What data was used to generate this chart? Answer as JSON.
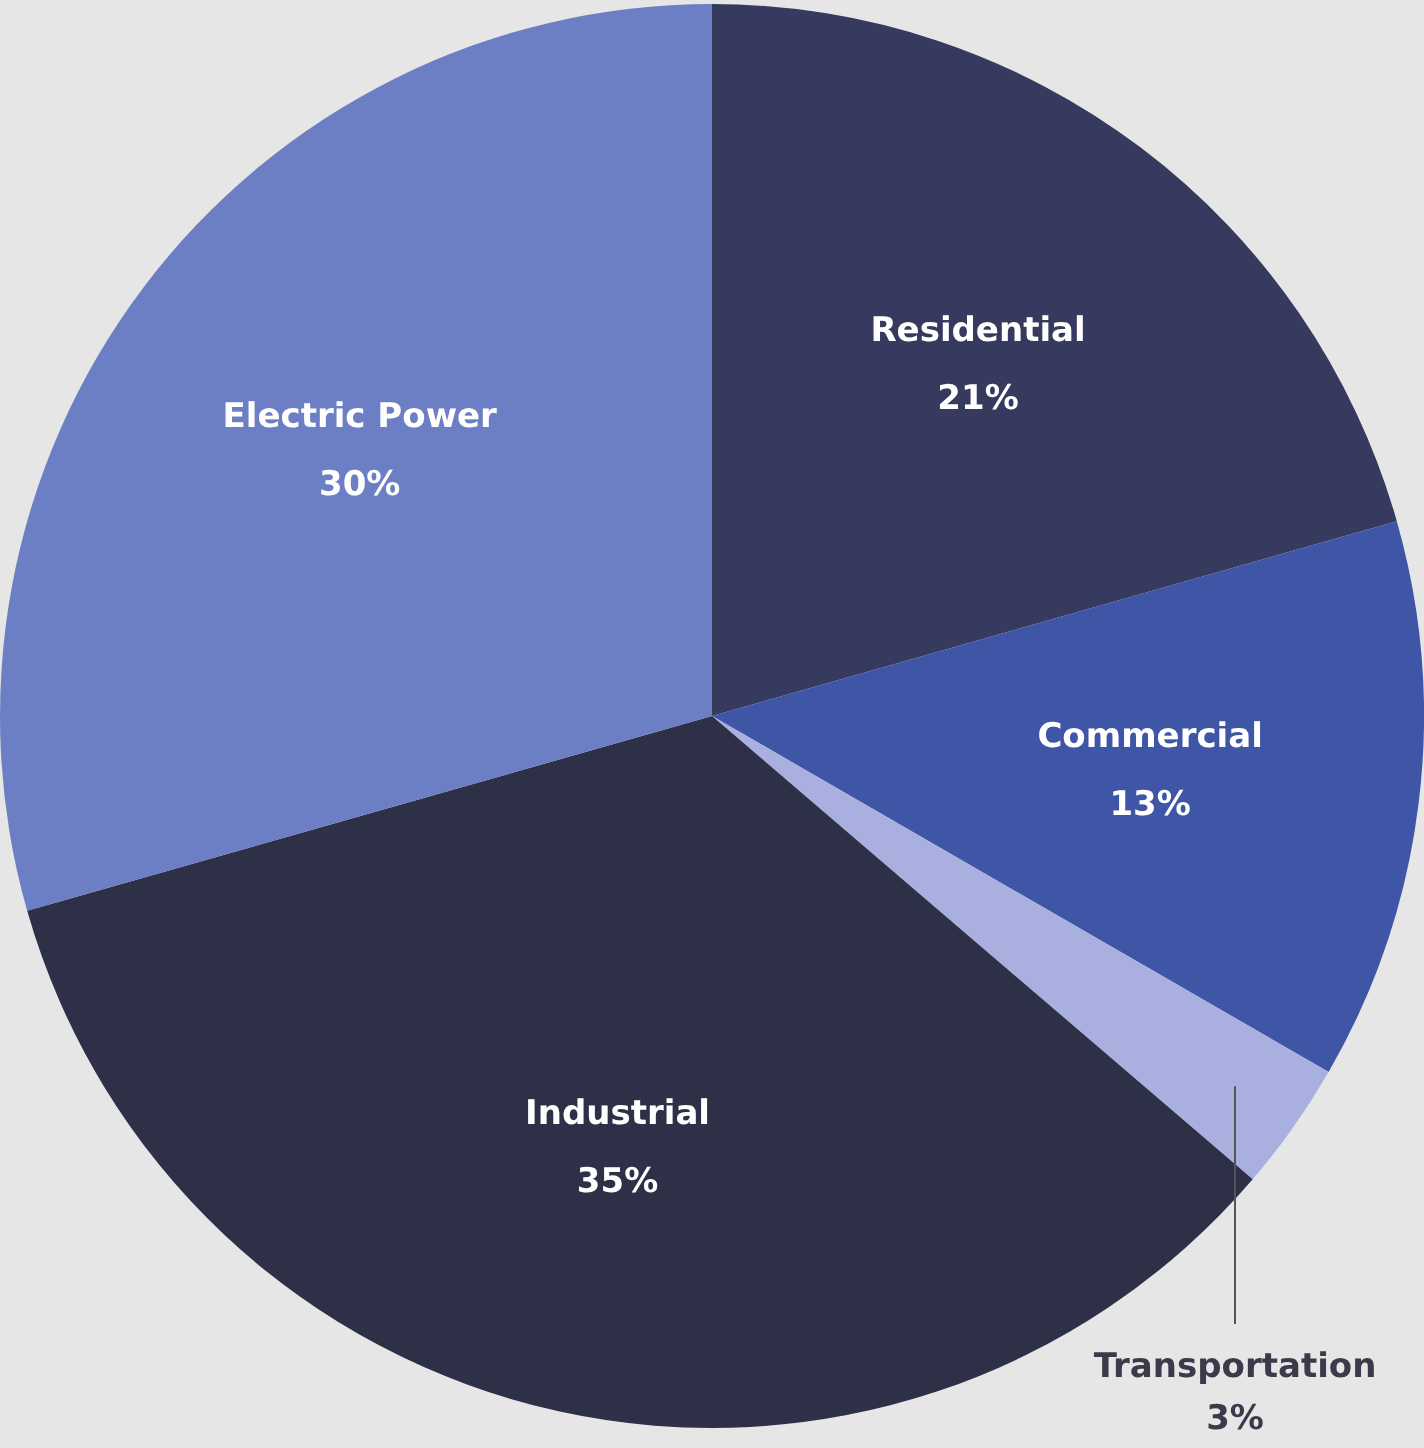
{
  "chart_data": {
    "type": "pie",
    "categories": [
      "Residential",
      "Commercial",
      "Transportation",
      "Industrial",
      "Electric Power"
    ],
    "values": [
      21,
      13,
      3,
      35,
      30
    ],
    "value_labels": [
      "21%",
      "13%",
      "3%",
      "35%",
      "30%"
    ],
    "colors": [
      "#353a5e",
      "#3f56a6",
      "#a9b0e0",
      "#2e3048",
      "#6d7fc4"
    ],
    "legend": false
  }
}
